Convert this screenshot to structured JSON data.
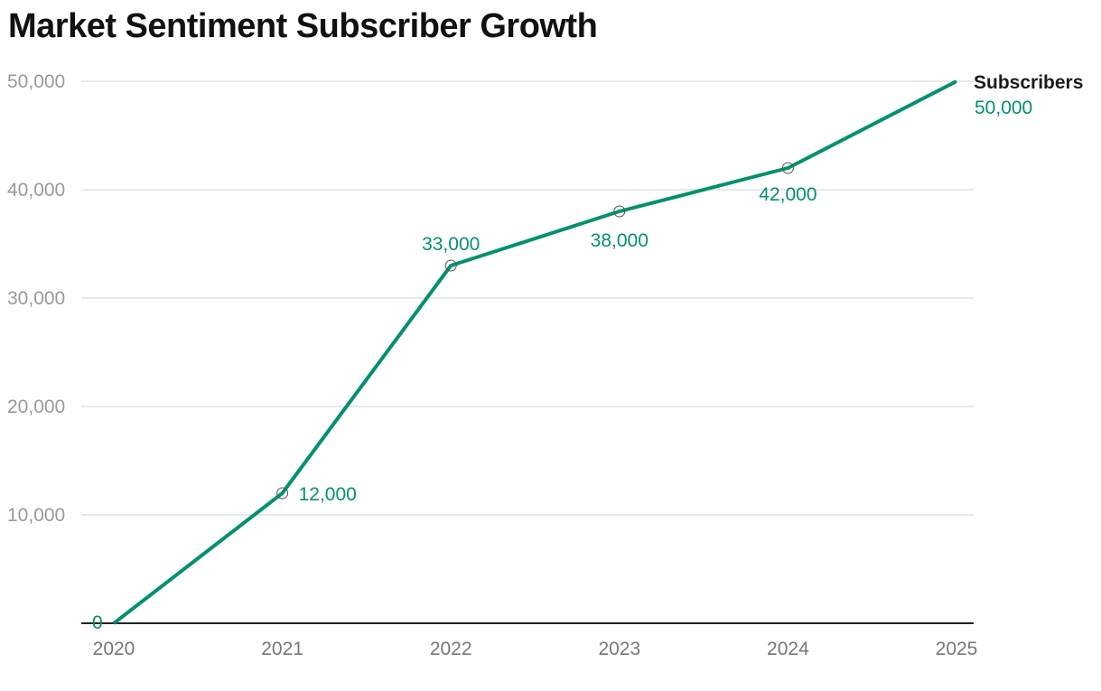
{
  "chart_data": {
    "type": "line",
    "title": "Market Sentiment Subscriber Growth",
    "xlabel": "",
    "ylabel": "",
    "categories": [
      "2020",
      "2021",
      "2022",
      "2023",
      "2024",
      "2025"
    ],
    "series": [
      {
        "name": "Subscribers",
        "color": "#00916e",
        "values": [
          0,
          12000,
          33000,
          38000,
          42000,
          50000
        ]
      }
    ],
    "data_labels": [
      "0",
      "12,000",
      "33,000",
      "38,000",
      "42,000",
      "50,000"
    ],
    "ylim": [
      0,
      50000
    ],
    "yticks": [
      0,
      10000,
      20000,
      30000,
      40000,
      50000
    ],
    "ytick_labels": [
      "",
      "10,000",
      "20,000",
      "30,000",
      "40,000",
      "50,000"
    ],
    "grid": true,
    "legend": "end-of-line label"
  }
}
